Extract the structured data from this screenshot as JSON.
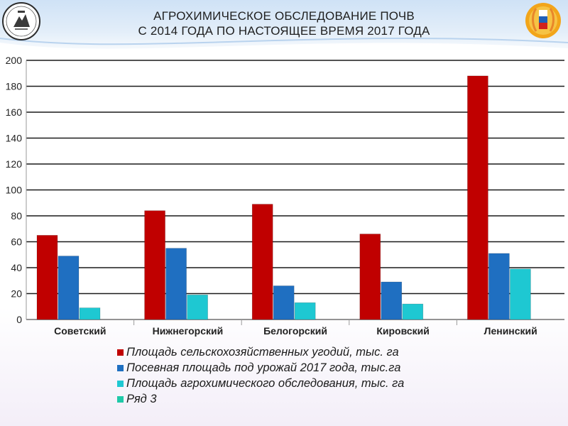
{
  "header": {
    "title_line1": "АГРОХИМИЧЕСКОЕ ОБСЛЕДОВАНИЕ ПОЧВ",
    "title_line2": "С 2014 ГОДА ПО НАСТОЯЩЕЕ ВРЕМЯ 2017 ГОДА",
    "left_logo_icon": "agrochem-service-emblem-icon",
    "right_logo_icon": "wheat-ear-flag-emblem-icon"
  },
  "colors": {
    "series1": "#c00000",
    "series2": "#1f6fc1",
    "series3": "#1ec8d2",
    "series4": "#1fc9a8",
    "grid": "#1a1a1a",
    "header_band": "#cfe2f6"
  },
  "chart_data": {
    "type": "bar",
    "categories": [
      "Советский",
      "Нижнегорский",
      "Белогорский",
      "Кировский",
      "Ленинский"
    ],
    "series": [
      {
        "name": "Площадь сельскохозяйственных угодий, тыс. га",
        "values": [
          65,
          84,
          89,
          66,
          188
        ]
      },
      {
        "name": "Посевная площадь под урожай 2017 года, тыс.га",
        "values": [
          49,
          55,
          26,
          29,
          51
        ]
      },
      {
        "name": "Площадь агрохимического обследования, тыс. га",
        "values": [
          9,
          19,
          13,
          12,
          39
        ]
      },
      {
        "name": "Ряд 3",
        "values": [
          null,
          null,
          null,
          null,
          null
        ]
      }
    ],
    "ylim": [
      0,
      200
    ],
    "yticks": [
      "0",
      "20",
      "40",
      "60",
      "80",
      "100",
      "120",
      "140",
      "160",
      "180",
      "200"
    ],
    "grid": true,
    "legend_position": "bottom",
    "title": "",
    "xlabel": "",
    "ylabel": ""
  }
}
